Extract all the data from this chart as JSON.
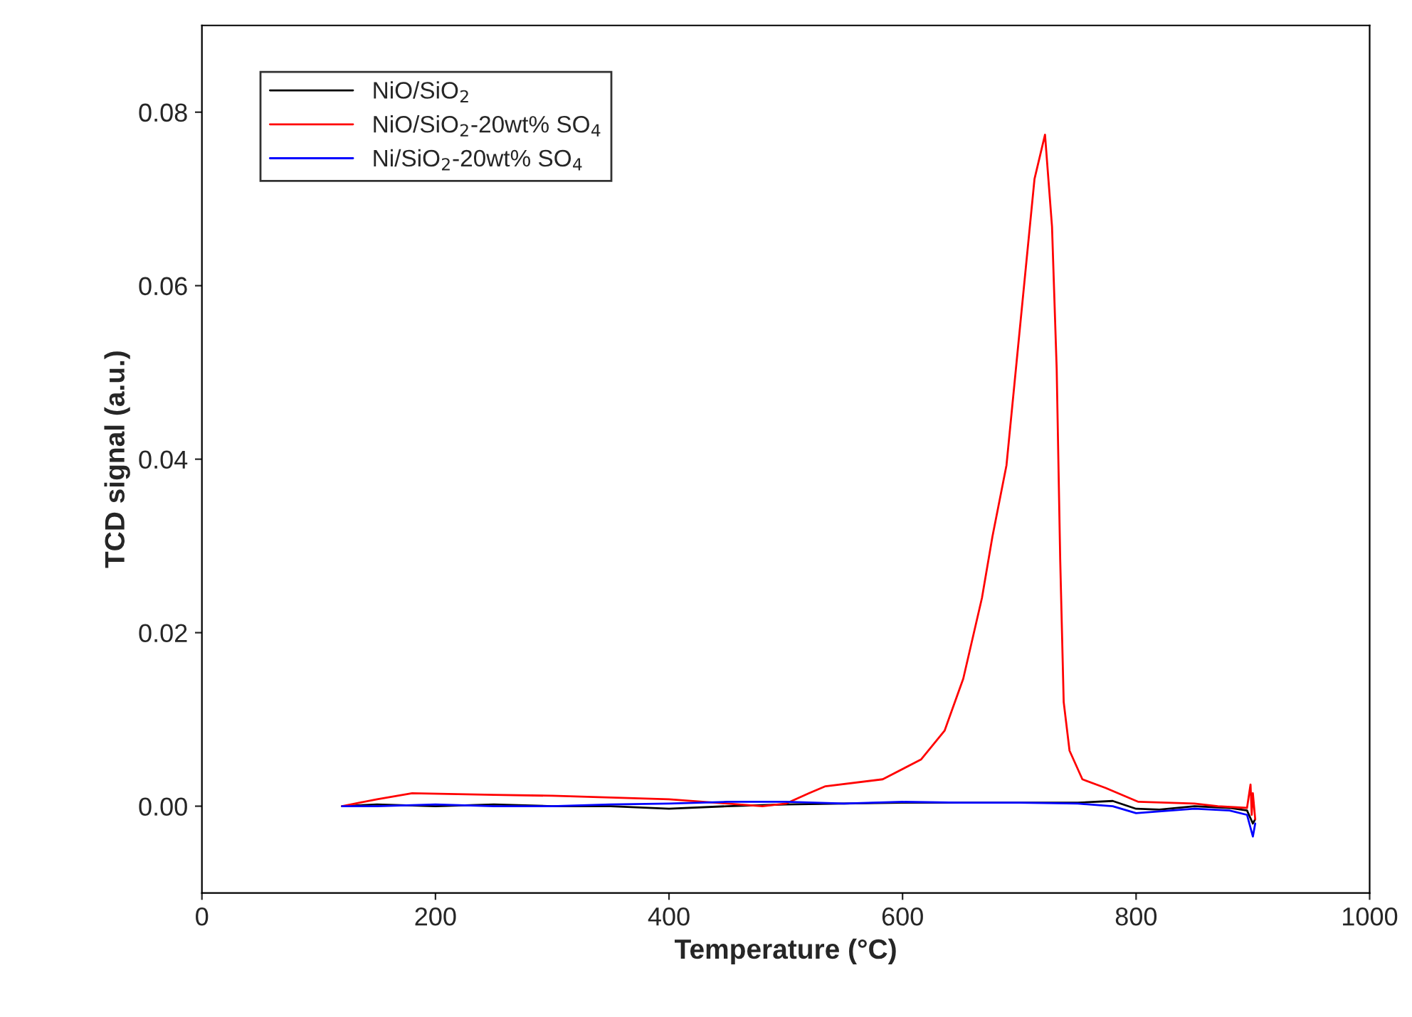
{
  "chart_data": {
    "type": "line",
    "xlabel": "Temperature (°C)",
    "ylabel": "TCD signal (a.u.)",
    "xlim": [
      0,
      1000
    ],
    "xticks": [
      0,
      200,
      400,
      600,
      800,
      1000
    ],
    "ylim": [
      -0.01,
      0.09
    ],
    "yticks": [
      {
        "value": 0.0,
        "label": "0.00"
      },
      {
        "value": 0.02,
        "label": "0.02"
      },
      {
        "value": 0.04,
        "label": "0.04"
      },
      {
        "value": 0.06,
        "label": "0.06"
      },
      {
        "value": 0.08,
        "label": "0.08"
      }
    ],
    "grid": false,
    "legend": "top left",
    "line_style": "solid",
    "marker": "none",
    "series": [
      {
        "name": "NiO/SiO$_{2}$",
        "color": "#000000",
        "x": [
          120,
          150,
          200,
          250,
          300,
          350,
          400,
          450,
          500,
          550,
          600,
          650,
          700,
          750,
          780,
          800,
          820,
          850,
          880,
          895,
          900,
          902
        ],
        "values": [
          0.0,
          0.0002,
          0.0,
          0.0002,
          0.0,
          0.0,
          -0.0003,
          0.0,
          0.0002,
          0.0003,
          0.0004,
          0.0004,
          0.0004,
          0.0004,
          0.0006,
          -0.0003,
          -0.0004,
          0.0,
          -0.0002,
          -0.0005,
          -0.002,
          -0.0015
        ]
      },
      {
        "name": "NiO/SiO$_{2}$-20wt% SO$_{4}$",
        "color": "#ff0000",
        "x": [
          120,
          150,
          180,
          250,
          300,
          350,
          400,
          450,
          480,
          500,
          520,
          534,
          583,
          616,
          636,
          652,
          668,
          677,
          689,
          701,
          713,
          722,
          728,
          732,
          735,
          738,
          743,
          754,
          774,
          802,
          850,
          870,
          895,
          898,
          899,
          900,
          902
        ],
        "values": [
          0.0,
          0.0008,
          0.0015,
          0.0013,
          0.0012,
          0.001,
          0.0008,
          0.0003,
          0.0,
          0.0003,
          0.0015,
          0.0023,
          0.0031,
          0.0054,
          0.0087,
          0.0147,
          0.024,
          0.0311,
          0.0393,
          0.0558,
          0.0723,
          0.0774,
          0.0668,
          0.0504,
          0.0285,
          0.012,
          0.0064,
          0.0031,
          0.0021,
          0.0005,
          0.0003,
          0.0,
          -0.0002,
          0.0025,
          -0.001,
          0.0015,
          -0.0015
        ]
      },
      {
        "name": "Ni/SiO$_{2}$-20wt% SO$_{4}$",
        "color": "#0000ff",
        "x": [
          120,
          150,
          200,
          250,
          300,
          350,
          400,
          450,
          500,
          550,
          600,
          650,
          700,
          750,
          780,
          800,
          820,
          850,
          880,
          895,
          900,
          902
        ],
        "values": [
          0.0,
          0.0,
          0.0002,
          0.0,
          0.0,
          0.0002,
          0.0003,
          0.0005,
          0.0005,
          0.0003,
          0.0005,
          0.0004,
          0.0004,
          0.0003,
          0.0,
          -0.0008,
          -0.0006,
          -0.0003,
          -0.0005,
          -0.001,
          -0.0035,
          -0.002
        ]
      }
    ]
  }
}
